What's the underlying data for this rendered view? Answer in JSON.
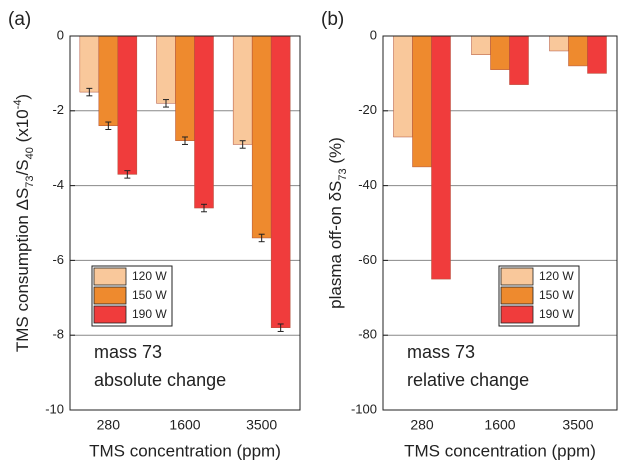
{
  "chart_data": [
    {
      "type": "bar",
      "panel_label": "(a)",
      "y_label": [
        "TMS consumption ΔS",
        "73",
        "/S",
        "40",
        " (x10",
        "-4",
        ")"
      ],
      "x_label": "TMS concentration (ppm)",
      "annotations": [
        "mass 73",
        "absolute change"
      ],
      "categories": [
        "280",
        "1600",
        "3500"
      ],
      "series": [
        {
          "name": "120 W",
          "color": "#f9c89b",
          "values": [
            -1.5,
            -1.8,
            -2.9
          ],
          "errors": [
            0.1,
            0.1,
            0.1
          ]
        },
        {
          "name": "150 W",
          "color": "#ee8a2e",
          "values": [
            -2.4,
            -2.8,
            -5.4
          ],
          "errors": [
            0.1,
            0.1,
            0.1
          ]
        },
        {
          "name": "190 W",
          "color": "#f03c3c",
          "values": [
            -3.7,
            -4.6,
            -7.8
          ],
          "errors": [
            0.1,
            0.1,
            0.1
          ]
        }
      ],
      "ylim": [
        -10,
        0
      ],
      "yticks": [
        0,
        -2,
        -4,
        -6,
        -8,
        -10
      ],
      "grid": true,
      "legend": "lower left"
    },
    {
      "type": "bar",
      "panel_label": "(b)",
      "y_label": [
        "plasma off-on δS",
        "73",
        " (%)"
      ],
      "x_label": "TMS concentration (ppm)",
      "annotations": [
        "mass 73",
        "relative change"
      ],
      "categories": [
        "280",
        "1600",
        "3500"
      ],
      "series": [
        {
          "name": "120 W",
          "color": "#f9c89b",
          "values": [
            -27,
            -5,
            -4
          ]
        },
        {
          "name": "150 W",
          "color": "#ee8a2e",
          "values": [
            -35,
            -9,
            -8
          ]
        },
        {
          "name": "190 W",
          "color": "#f03c3c",
          "values": [
            -65,
            -13,
            -10
          ]
        }
      ],
      "ylim": [
        -100,
        0
      ],
      "yticks": [
        0,
        -20,
        -40,
        -60,
        -80,
        -100
      ],
      "grid": true,
      "legend": "lower right"
    }
  ]
}
